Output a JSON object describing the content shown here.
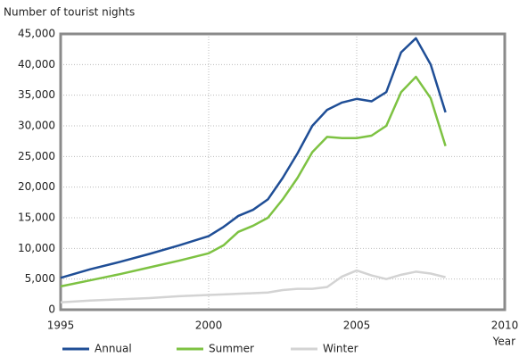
{
  "chart_data": {
    "type": "line",
    "y_label": "Number of tourist nights",
    "x_label": "Year",
    "x": [
      1995,
      1996,
      1997,
      1998,
      1999,
      2000,
      2000.5,
      2001,
      2001.5,
      2002,
      2002.5,
      2003,
      2003.5,
      2004,
      2004.5,
      2005,
      2005.5,
      2006,
      2006.5,
      2007,
      2007.5,
      2008
    ],
    "series": [
      {
        "name": "Annual",
        "color": "#1f4e96",
        "values": [
          5200,
          6600,
          7800,
          9100,
          10500,
          12000,
          13500,
          15300,
          16300,
          18000,
          21500,
          25500,
          30000,
          32600,
          33800,
          34400,
          34000,
          35500,
          42000,
          44300,
          40000,
          32200
        ]
      },
      {
        "name": "Summer",
        "color": "#7dc242",
        "values": [
          3800,
          4800,
          5800,
          6900,
          8000,
          9200,
          10500,
          12700,
          13700,
          15000,
          18000,
          21500,
          25700,
          28200,
          28000,
          28000,
          28400,
          30000,
          35500,
          38000,
          34500,
          26700
        ]
      },
      {
        "name": "Winter",
        "color": "#d3d3d3",
        "values": [
          1200,
          1500,
          1700,
          1900,
          2200,
          2400,
          2500,
          2600,
          2700,
          2800,
          3200,
          3400,
          3400,
          3700,
          5400,
          6400,
          5600,
          5000,
          5700,
          6200,
          5900,
          5300
        ]
      }
    ],
    "xlim": [
      1995,
      2010
    ],
    "xticks": [
      1995,
      2000,
      2005,
      2010
    ],
    "ylim": [
      0,
      45000
    ],
    "yticks": [
      0,
      {
        "value": 5000,
        "label": "5,000"
      },
      {
        "value": 10000,
        "label": "10,000"
      },
      {
        "value": 15000,
        "label": "15,000"
      },
      {
        "value": 20000,
        "label": "20,000"
      },
      {
        "value": 25000,
        "label": "25,000"
      },
      {
        "value": 30000,
        "label": "30,000"
      },
      {
        "value": 35000,
        "label": "35,000"
      },
      {
        "value": 40000,
        "label": "40,000"
      },
      {
        "value": 45000,
        "label": "45,000"
      }
    ],
    "grid": true,
    "legend": "bottom"
  }
}
